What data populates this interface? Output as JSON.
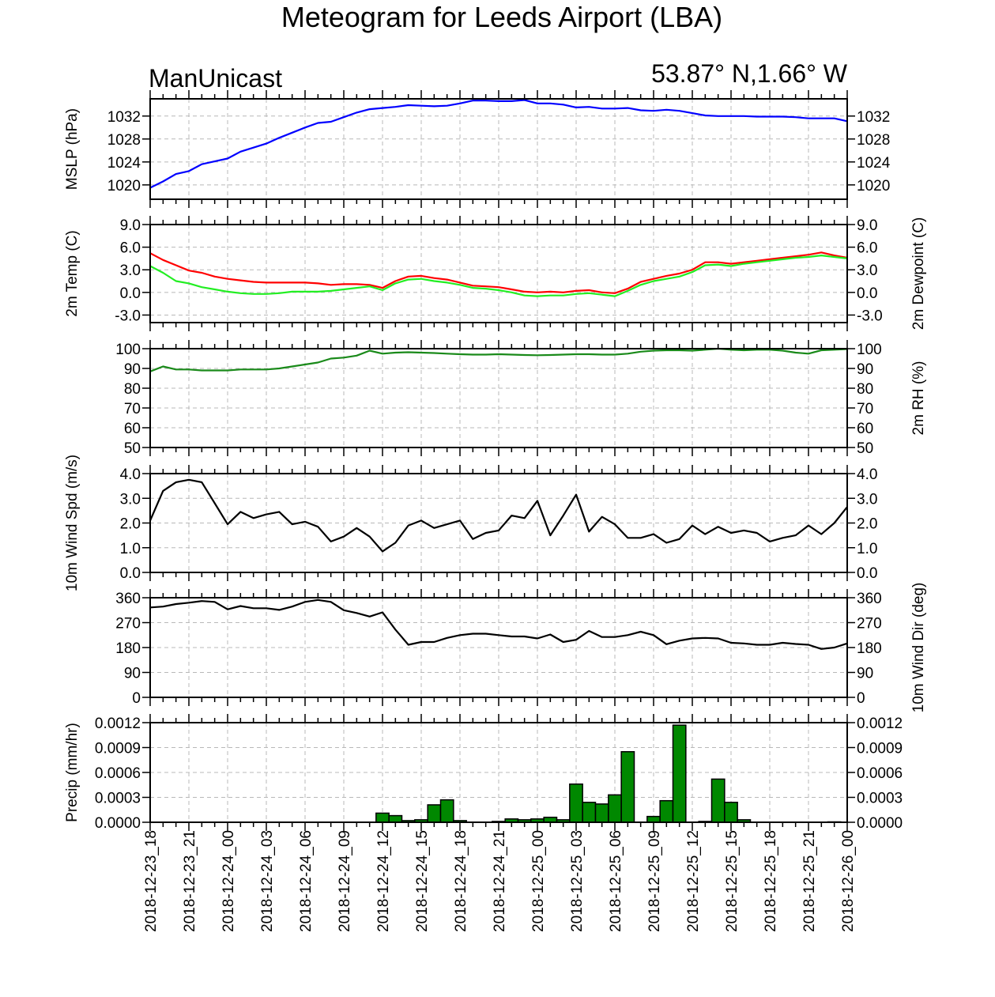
{
  "title": "Meteogram for Leeds Airport (LBA)",
  "subtitle_left": "ManUnicast",
  "subtitle_right": "53.87° N,1.66° W",
  "chart_data": {
    "type": "line",
    "x_labels": [
      "2018-12-23_18",
      "2018-12-23_21",
      "2018-12-24_00",
      "2018-12-24_03",
      "2018-12-24_06",
      "2018-12-24_09",
      "2018-12-24_12",
      "2018-12-24_15",
      "2018-12-24_18",
      "2018-12-24_21",
      "2018-12-25_00",
      "2018-12-25_03",
      "2018-12-25_06",
      "2018-12-25_09",
      "2018-12-25_12",
      "2018-12-25_15",
      "2018-12-25_18",
      "2018-12-25_21",
      "2018-12-26_00"
    ],
    "x_hours": [
      0,
      1,
      2,
      3,
      4,
      5,
      6,
      7,
      8,
      9,
      10,
      11,
      12,
      13,
      14,
      15,
      16,
      17,
      18,
      19,
      20,
      21,
      22,
      23,
      24,
      25,
      26,
      27,
      28,
      29,
      30,
      31,
      32,
      33,
      34,
      35,
      36,
      37,
      38,
      39,
      40,
      41,
      42,
      43,
      44,
      45,
      46,
      47,
      48,
      49,
      50,
      51,
      52,
      53,
      54
    ],
    "panels": [
      {
        "type": "line",
        "ylabel_left": "MSLP (hPa)",
        "ylabel_right": "",
        "ylim": [
          1017.5,
          1035
        ],
        "yticks": [
          "1020",
          "1024",
          "1028",
          "1032"
        ],
        "ytick_values": [
          1020,
          1024,
          1028,
          1032
        ],
        "grid": true,
        "series": [
          {
            "color": "#0000ff",
            "values": [
              1019.5,
              1020.6,
              1021.9,
              1022.4,
              1023.6,
              1024.1,
              1024.6,
              1025.8,
              1026.5,
              1027.2,
              1028.2,
              1029.1,
              1030.0,
              1030.8,
              1031.0,
              1031.8,
              1032.6,
              1033.2,
              1033.4,
              1033.6,
              1033.9,
              1033.8,
              1033.7,
              1033.8,
              1034.2,
              1034.7,
              1034.7,
              1034.6,
              1034.6,
              1034.8,
              1034.2,
              1034.2,
              1034.0,
              1033.5,
              1033.6,
              1033.3,
              1033.3,
              1033.4,
              1033.0,
              1032.9,
              1033.1,
              1032.9,
              1032.5,
              1032.1,
              1032.0,
              1032.0,
              1032.0,
              1031.9,
              1031.9,
              1031.9,
              1031.8,
              1031.6,
              1031.6,
              1031.6,
              1031.1
            ]
          }
        ]
      },
      {
        "type": "line",
        "ylabel_left": "2m Temp (C)",
        "ylabel_right": "2m Dewpoint (C)",
        "ylim": [
          -4,
          9
        ],
        "yticks": [
          "-3.0",
          "0.0",
          "3.0",
          "6.0",
          "9.0"
        ],
        "ytick_values": [
          -3,
          0,
          3,
          6,
          9
        ],
        "grid": true,
        "series": [
          {
            "color": "#ff0000",
            "values": [
              5.2,
              4.3,
              3.6,
              2.9,
              2.6,
              2.1,
              1.8,
              1.6,
              1.4,
              1.3,
              1.3,
              1.3,
              1.3,
              1.2,
              1.0,
              1.1,
              1.1,
              1.0,
              0.6,
              1.5,
              2.1,
              2.2,
              1.9,
              1.7,
              1.3,
              0.9,
              0.8,
              0.7,
              0.4,
              0.1,
              0.0,
              0.1,
              0.0,
              0.2,
              0.3,
              0.0,
              -0.1,
              0.5,
              1.4,
              1.8,
              2.2,
              2.5,
              3.0,
              4.0,
              4.0,
              3.8,
              4.0,
              4.2,
              4.4,
              4.6,
              4.8,
              5.0,
              5.3,
              4.9,
              4.6
            ]
          },
          {
            "color": "#22ee22",
            "values": [
              3.5,
              2.6,
              1.5,
              1.2,
              0.7,
              0.4,
              0.1,
              -0.1,
              -0.2,
              -0.2,
              -0.1,
              0.1,
              0.1,
              0.1,
              0.2,
              0.4,
              0.6,
              0.8,
              0.3,
              1.2,
              1.7,
              1.8,
              1.5,
              1.3,
              1.0,
              0.6,
              0.5,
              0.3,
              0.0,
              -0.4,
              -0.5,
              -0.4,
              -0.4,
              -0.2,
              -0.1,
              -0.3,
              -0.5,
              0.2,
              1.0,
              1.5,
              1.8,
              2.1,
              2.7,
              3.6,
              3.7,
              3.5,
              3.8,
              4.0,
              4.2,
              4.4,
              4.6,
              4.7,
              4.9,
              4.7,
              4.5
            ]
          }
        ]
      },
      {
        "type": "line",
        "ylabel_left": "",
        "ylabel_right": "2m RH (%)",
        "ylim": [
          50,
          100
        ],
        "yticks": [
          "50",
          "60",
          "70",
          "80",
          "90",
          "100"
        ],
        "ytick_values": [
          50,
          60,
          70,
          80,
          90,
          100
        ],
        "grid": true,
        "series": [
          {
            "color": "#1a8a1a",
            "values": [
              88.5,
              91,
              89.5,
              89.5,
              89,
              89,
              89,
              89.5,
              89.5,
              89.5,
              90,
              91,
              92,
              93,
              95,
              95.5,
              96.5,
              99,
              97.5,
              98,
              98.2,
              98,
              97.8,
              97.5,
              97.2,
              97,
              97,
              97.2,
              97,
              96.8,
              96.7,
              96.8,
              97,
              97.2,
              97.2,
              97,
              97,
              97.5,
              98.5,
              99,
              99.2,
              99.2,
              99,
              99.5,
              100,
              99.5,
              99.2,
              99.5,
              99.5,
              99,
              98,
              97.5,
              99.2,
              99.5,
              99.8
            ]
          }
        ]
      },
      {
        "type": "line",
        "ylabel_left": "10m Wind Spd (m/s)",
        "ylabel_right": "",
        "ylim": [
          0,
          4
        ],
        "yticks": [
          "0.0",
          "1.0",
          "2.0",
          "3.0",
          "4.0"
        ],
        "ytick_values": [
          0,
          1,
          2,
          3,
          4
        ],
        "grid": true,
        "series": [
          {
            "color": "#000000",
            "values": [
              2.1,
              3.3,
              3.65,
              3.75,
              3.65,
              2.8,
              1.95,
              2.45,
              2.2,
              2.35,
              2.45,
              1.95,
              2.05,
              1.85,
              1.25,
              1.45,
              1.8,
              1.45,
              0.85,
              1.2,
              1.9,
              2.1,
              1.8,
              1.95,
              2.1,
              1.35,
              1.6,
              1.7,
              2.3,
              2.2,
              2.9,
              1.5,
              2.3,
              3.15,
              1.65,
              2.25,
              1.95,
              1.4,
              1.4,
              1.55,
              1.2,
              1.35,
              1.9,
              1.55,
              1.85,
              1.6,
              1.7,
              1.6,
              1.25,
              1.4,
              1.5,
              1.9,
              1.55,
              2.0,
              2.65
            ]
          }
        ]
      },
      {
        "type": "line",
        "ylabel_left": "",
        "ylabel_right": "10m Wind Dir (deg)",
        "ylim": [
          0,
          360
        ],
        "yticks": [
          "0",
          "90",
          "180",
          "270",
          "360"
        ],
        "ytick_values": [
          0,
          90,
          180,
          270,
          360
        ],
        "grid": true,
        "series": [
          {
            "color": "#000000",
            "values": [
              325,
              328,
              337,
              342,
              348,
              345,
              318,
              330,
              322,
              322,
              316,
              328,
              345,
              352,
              345,
              315,
              305,
              292,
              307,
              245,
              190,
              200,
              200,
              215,
              225,
              230,
              230,
              225,
              220,
              220,
              213,
              227,
              200,
              208,
              240,
              218,
              218,
              225,
              237,
              225,
              192,
              205,
              213,
              215,
              213,
              197,
              195,
              190,
              190,
              197,
              193,
              190,
              175,
              180,
              195
            ]
          }
        ]
      },
      {
        "type": "bar",
        "ylabel_left": "Precip (mm/hr)",
        "ylabel_right": "",
        "ylim": [
          0,
          0.0012
        ],
        "yticks": [
          "0.0000",
          "0.0003",
          "0.0006",
          "0.0009",
          "0.0012"
        ],
        "ytick_values": [
          0,
          0.0003,
          0.0006,
          0.0009,
          0.0012
        ],
        "grid": true,
        "bar_fill": "#008800",
        "bar_stroke": "#000000",
        "values": [
          0,
          0,
          0,
          0,
          0,
          0,
          0,
          0,
          0,
          0,
          0,
          0,
          0,
          0,
          0,
          0,
          0,
          0,
          0.00011,
          8e-05,
          2e-05,
          3e-05,
          0.00021,
          0.00027,
          2e-05,
          0,
          0,
          1e-05,
          4e-05,
          3e-05,
          4e-05,
          6e-05,
          3e-05,
          0.00046,
          0.00024,
          0.00022,
          0.00033,
          0.00085,
          0,
          7e-05,
          0.00026,
          0.00117,
          0,
          1e-05,
          0.00052,
          0.00024,
          3e-05,
          0,
          0,
          0,
          0,
          0,
          0,
          5e-06,
          0
        ]
      }
    ]
  }
}
